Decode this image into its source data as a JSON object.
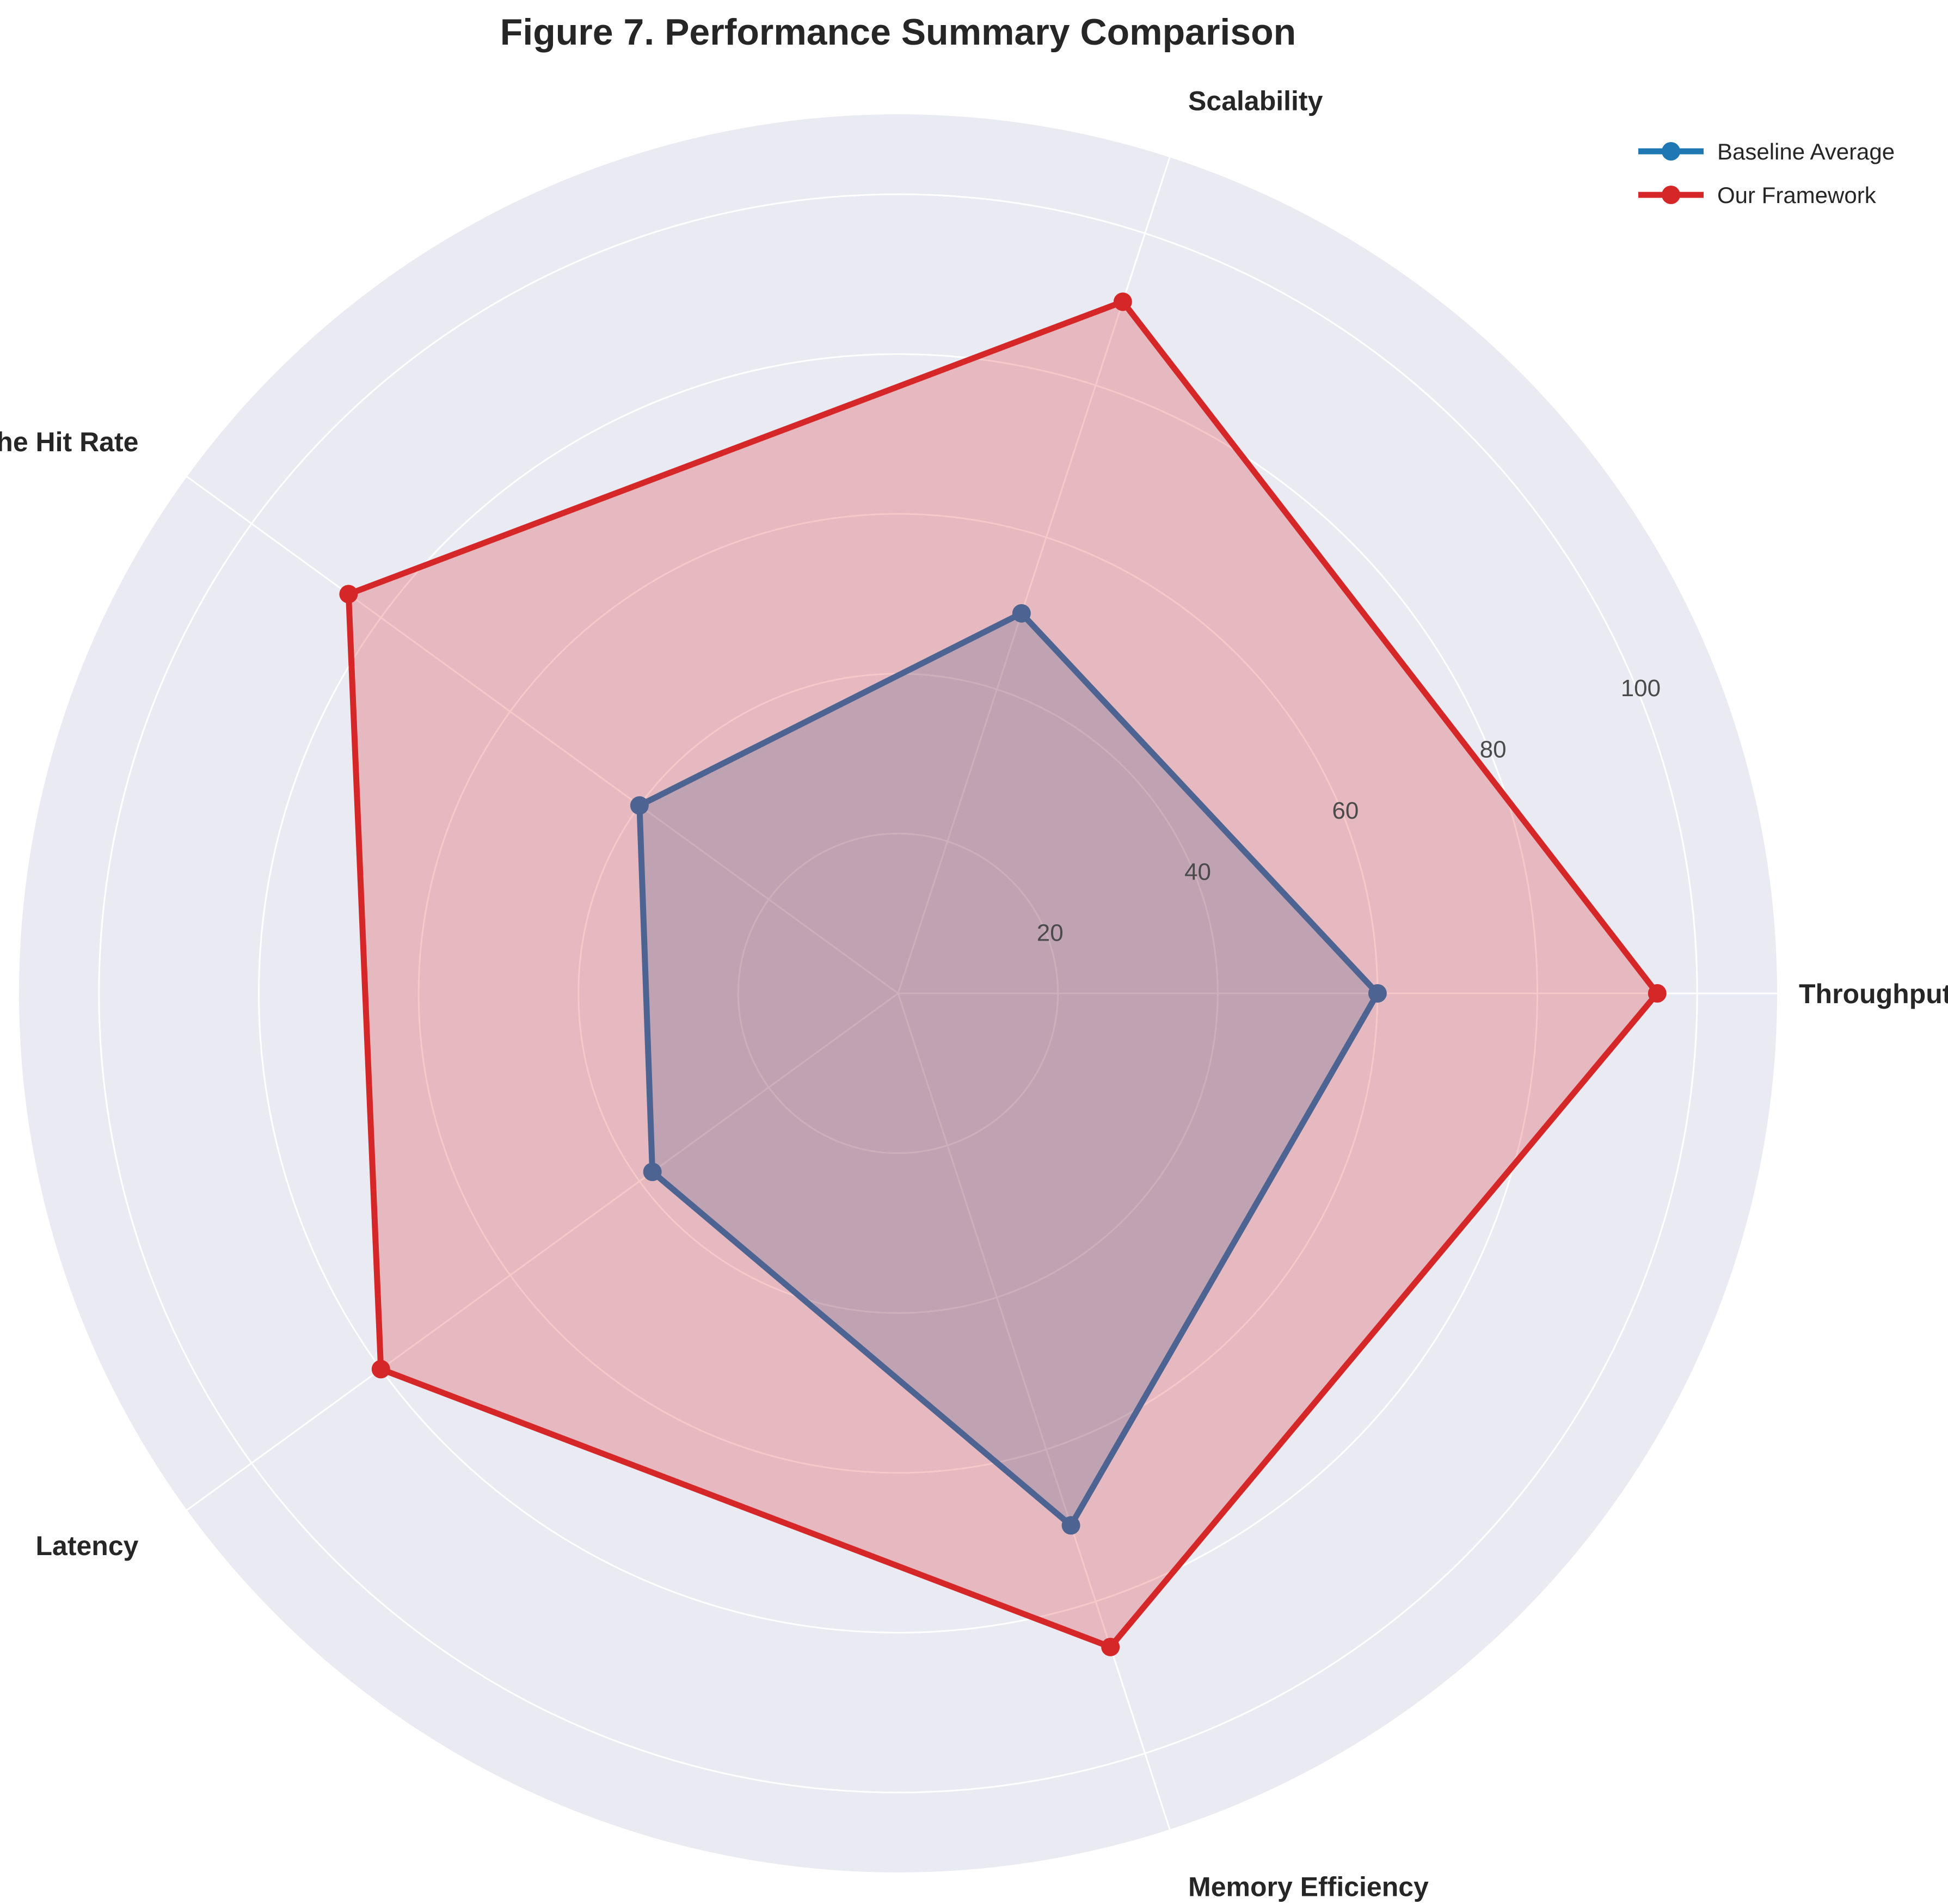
{
  "chart_data": {
    "type": "radar",
    "title": "Figure 7. Performance Summary Comparison",
    "axes": [
      "Throughput",
      "Scalability",
      "Cache Hit Rate",
      "Latency",
      "Memory Efficiency"
    ],
    "rlim": [
      0,
      110
    ],
    "rticks": [
      20,
      40,
      60,
      80,
      100
    ],
    "rtick_labels": [
      "20",
      "40",
      "60",
      "80",
      "100"
    ],
    "grid": true,
    "legend_position": "top-right",
    "series": [
      {
        "name": "Baseline Average",
        "color": "#1f77b4",
        "values": [
          60,
          50,
          40,
          38,
          70
        ]
      },
      {
        "name": "Our Framework",
        "color": "#d62728",
        "values": [
          95,
          91,
          85,
          80,
          86
        ]
      }
    ]
  }
}
